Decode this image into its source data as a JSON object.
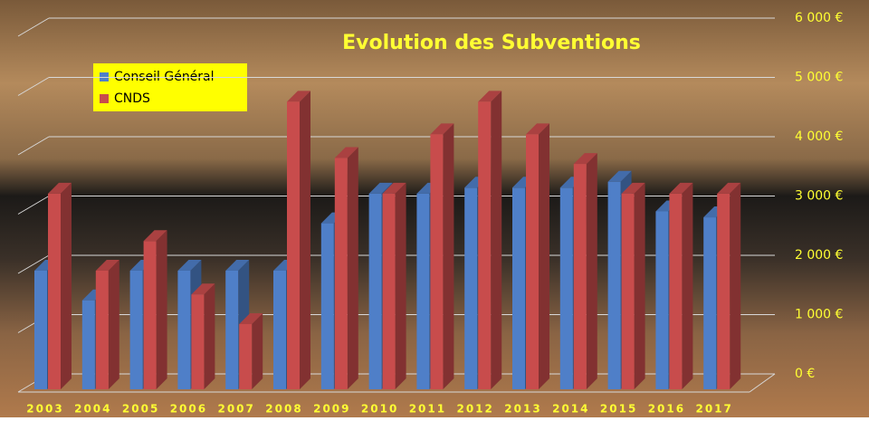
{
  "chart_data": {
    "type": "bar3d",
    "title": "Evolution des Subventions",
    "categories": [
      "2003",
      "2004",
      "2005",
      "2006",
      "2007",
      "2008",
      "2009",
      "2010",
      "2011",
      "2012",
      "2013",
      "2014",
      "2015",
      "2016",
      "2017"
    ],
    "series": [
      {
        "name": "Conseil Général",
        "color": "#4f7fc8",
        "values": [
          2000,
          1500,
          2000,
          2000,
          2000,
          2000,
          2800,
          3300,
          3300,
          3400,
          3400,
          3400,
          3500,
          3000,
          2900
        ]
      },
      {
        "name": "CNDS",
        "color": "#c84c4c",
        "values": [
          3300,
          2000,
          2500,
          1600,
          1100,
          4850,
          3900,
          3300,
          4300,
          4850,
          4300,
          3800,
          3300,
          3300,
          3300
        ]
      }
    ],
    "ylim": [
      0,
      6000
    ],
    "yticks": [
      {
        "value": 0,
        "label": "0 €"
      },
      {
        "value": 1000,
        "label": "1 000 €"
      },
      {
        "value": 2000,
        "label": "2 000 €"
      },
      {
        "value": 3000,
        "label": "3 000 €"
      },
      {
        "value": 4000,
        "label": "4 000 €"
      },
      {
        "value": 5000,
        "label": "5 000 €"
      },
      {
        "value": 6000,
        "label": "6 000 €"
      }
    ],
    "grid": true
  }
}
